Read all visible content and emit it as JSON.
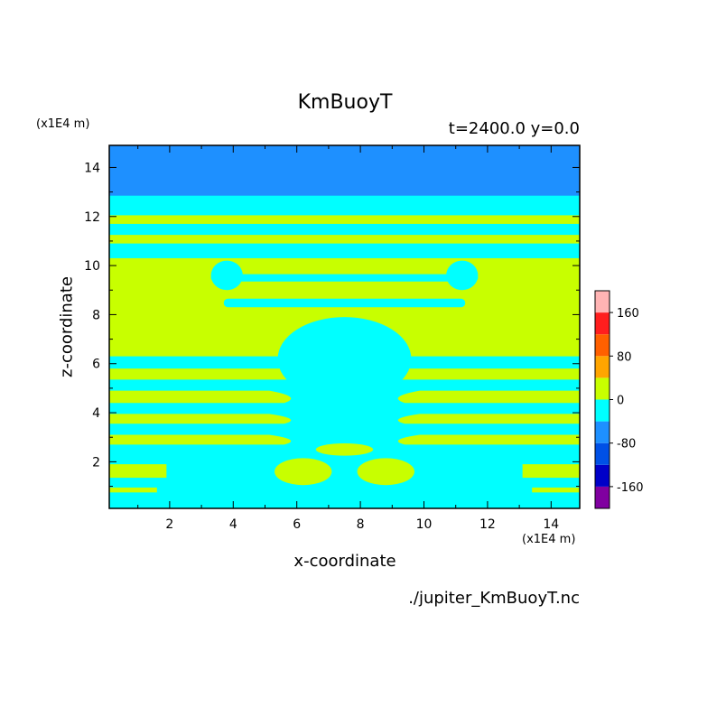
{
  "chart_data": {
    "type": "heatmap",
    "title": "KmBuoyT",
    "subtitle": "t=2400.0 y=0.0",
    "xlabel": "x-coordinate",
    "ylabel": "z-coordinate",
    "x_unit": "(x1E4 m)",
    "y_unit": "(x1E4 m)",
    "xlim": [
      0.1,
      14.9
    ],
    "ylim": [
      0.1,
      14.9
    ],
    "xticks": [
      2,
      4,
      6,
      8,
      10,
      12,
      14
    ],
    "yticks": [
      2,
      4,
      6,
      8,
      10,
      12,
      14
    ],
    "source": "./jupiter_KmBuoyT.nc",
    "colorbar": {
      "levels": [
        -200,
        -160,
        -120,
        -80,
        -40,
        0,
        40,
        80,
        120,
        160,
        200
      ],
      "tick_labels": [
        "160",
        "80",
        "0",
        "-80",
        "-160"
      ],
      "tick_values": [
        160,
        80,
        0,
        -80,
        -160
      ],
      "colors": [
        "#8000a0",
        "#0000c8",
        "#0050e6",
        "#1e90ff",
        "#00ffff",
        "#c8ff00",
        "#ffa500",
        "#ff6000",
        "#ff1e1e",
        "#ffb4b4"
      ]
    },
    "field_colors": {
      "high_band": "#1e90ff",
      "negative": "#00ffff",
      "positive": "#c8ff00"
    },
    "regions": {
      "top_band_z": [
        12.85,
        14.9
      ],
      "positive_bands": [
        {
          "x": [
            0.1,
            14.9
          ],
          "z": [
            11.7,
            12.05
          ],
          "taper": 0
        },
        {
          "x": [
            0.1,
            14.9
          ],
          "z": [
            10.9,
            11.25
          ],
          "taper": 0
        },
        {
          "x": [
            0.1,
            14.9
          ],
          "z": [
            6.3,
            10.3
          ],
          "taper": 0
        },
        {
          "x": [
            0.1,
            14.9
          ],
          "z": [
            5.35,
            5.8
          ],
          "taper": 0
        },
        {
          "x": [
            0.1,
            14.9
          ],
          "z": [
            4.4,
            4.9
          ],
          "taper": 1
        },
        {
          "x": [
            0.1,
            14.9
          ],
          "z": [
            3.55,
            3.95
          ],
          "taper": 1
        },
        {
          "x": [
            0.1,
            14.9
          ],
          "z": [
            2.7,
            3.1
          ],
          "taper": 1
        },
        {
          "x": [
            0.1,
            1.9
          ],
          "z": [
            1.35,
            1.9
          ],
          "taper": 0
        },
        {
          "x": [
            13.1,
            14.9
          ],
          "z": [
            1.35,
            1.9
          ],
          "taper": 0
        },
        {
          "x": [
            0.1,
            1.6
          ],
          "z": [
            0.75,
            0.95
          ],
          "taper": 0
        },
        {
          "x": [
            13.4,
            14.9
          ],
          "z": [
            0.75,
            0.95
          ],
          "taper": 0
        }
      ],
      "negative_blobs": [
        {
          "cx": 7.5,
          "cz": 6.2,
          "rx": 2.1,
          "rz": 1.7
        },
        {
          "cx": 7.5,
          "cz": 4.6,
          "rx": 1.4,
          "rz": 1.0
        },
        {
          "cx": 3.8,
          "cz": 9.6,
          "rx": 0.5,
          "rz": 0.6
        },
        {
          "cx": 11.2,
          "cz": 9.6,
          "rx": 0.5,
          "rz": 0.6
        }
      ],
      "negative_strips": [
        {
          "x": [
            3.3,
            11.7
          ],
          "z": [
            9.35,
            9.65
          ]
        },
        {
          "x": [
            3.7,
            11.3
          ],
          "z": [
            8.3,
            8.65
          ]
        }
      ],
      "positive_blobs": [
        {
          "cx": 6.2,
          "cz": 1.6,
          "rx": 0.9,
          "rz": 0.55
        },
        {
          "cx": 8.8,
          "cz": 1.6,
          "rx": 0.9,
          "rz": 0.55
        },
        {
          "cx": 7.5,
          "cz": 2.5,
          "rx": 0.9,
          "rz": 0.25
        }
      ]
    }
  }
}
